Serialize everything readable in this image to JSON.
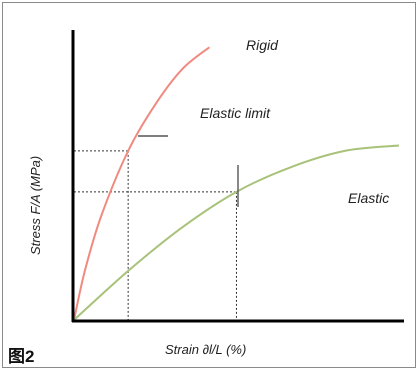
{
  "figure_label": "图2",
  "chart_data": {
    "type": "line",
    "xlabel": "Strain ∂l/L (%)",
    "ylabel": "Stress F/A (MPa)",
    "annotations": [
      "Elastic limit"
    ],
    "grid": false,
    "series": [
      {
        "name": "Rigid",
        "color": "#f08a80",
        "points": [
          [
            0,
            0
          ],
          [
            2,
            18
          ],
          [
            5,
            38
          ],
          [
            10,
            62
          ],
          [
            15,
            79
          ],
          [
            20,
            92
          ],
          [
            25,
            100
          ]
        ]
      },
      {
        "name": "Elastic",
        "color": "#a8c27a",
        "points": [
          [
            0,
            0
          ],
          [
            10,
            18
          ],
          [
            20,
            34
          ],
          [
            30,
            47
          ],
          [
            40,
            56
          ],
          [
            50,
            62
          ],
          [
            60,
            64
          ]
        ]
      }
    ],
    "reference_lines": [
      {
        "x": 10,
        "y": 62
      },
      {
        "x": 30,
        "y": 47
      }
    ],
    "xlim": [
      0,
      65
    ],
    "ylim": [
      0,
      110
    ]
  }
}
